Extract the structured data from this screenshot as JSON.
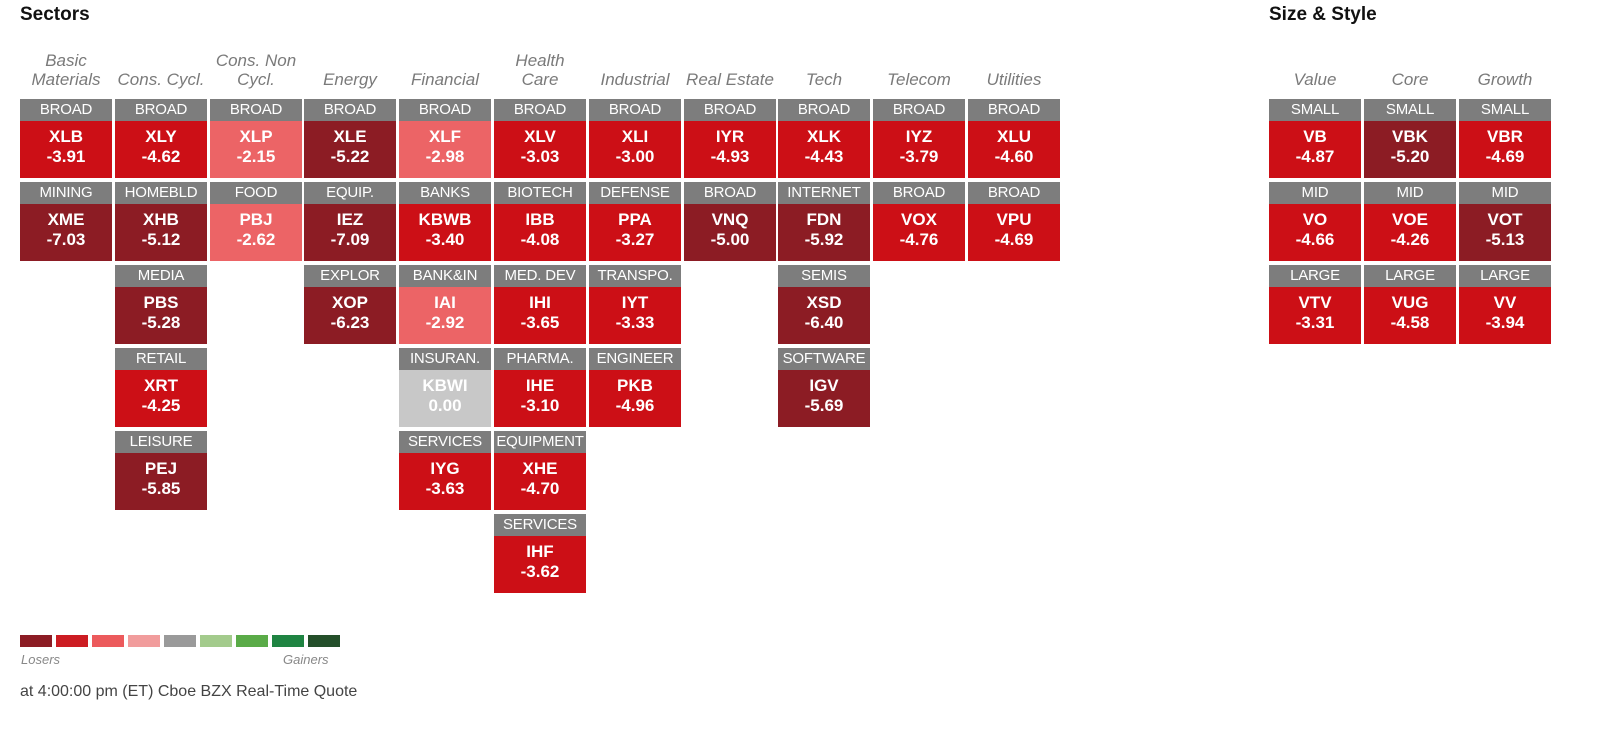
{
  "sectors_title": "Sectors",
  "size_style_title": "Size & Style",
  "colors": {
    "deep_loss": "#8c1c24",
    "loss": "#cc0f16",
    "mild_loss": "#ec6466",
    "neutral": "#c8c8c8",
    "sublabel_bg": "#7d7d7d"
  },
  "sector_columns": [
    {
      "header": "Basic\nMaterials",
      "tiles": [
        {
          "sub": "BROAD",
          "ticker": "XLB",
          "change": "-3.91",
          "level": "loss"
        },
        {
          "sub": "MINING",
          "ticker": "XME",
          "change": "-7.03",
          "level": "deep_loss"
        }
      ]
    },
    {
      "header": "Cons. Cycl.",
      "tiles": [
        {
          "sub": "BROAD",
          "ticker": "XLY",
          "change": "-4.62",
          "level": "loss"
        },
        {
          "sub": "HOMEBLD",
          "ticker": "XHB",
          "change": "-5.12",
          "level": "deep_loss"
        },
        {
          "sub": "MEDIA",
          "ticker": "PBS",
          "change": "-5.28",
          "level": "deep_loss"
        },
        {
          "sub": "RETAIL",
          "ticker": "XRT",
          "change": "-4.25",
          "level": "loss"
        },
        {
          "sub": "LEISURE",
          "ticker": "PEJ",
          "change": "-5.85",
          "level": "deep_loss"
        }
      ]
    },
    {
      "header": "Cons. Non\nCycl.",
      "tiles": [
        {
          "sub": "BROAD",
          "ticker": "XLP",
          "change": "-2.15",
          "level": "mild_loss"
        },
        {
          "sub": "FOOD",
          "ticker": "PBJ",
          "change": "-2.62",
          "level": "mild_loss"
        }
      ]
    },
    {
      "header": "Energy",
      "tiles": [
        {
          "sub": "BROAD",
          "ticker": "XLE",
          "change": "-5.22",
          "level": "deep_loss"
        },
        {
          "sub": "EQUIP.",
          "ticker": "IEZ",
          "change": "-7.09",
          "level": "deep_loss"
        },
        {
          "sub": "EXPLOR",
          "ticker": "XOP",
          "change": "-6.23",
          "level": "deep_loss"
        }
      ]
    },
    {
      "header": "Financial",
      "tiles": [
        {
          "sub": "BROAD",
          "ticker": "XLF",
          "change": "-2.98",
          "level": "mild_loss"
        },
        {
          "sub": "BANKS",
          "ticker": "KBWB",
          "change": "-3.40",
          "level": "loss"
        },
        {
          "sub": "BANK&IN",
          "ticker": "IAI",
          "change": "-2.92",
          "level": "mild_loss"
        },
        {
          "sub": "INSURAN.",
          "ticker": "KBWI",
          "change": "0.00",
          "level": "neutral"
        },
        {
          "sub": "SERVICES",
          "ticker": "IYG",
          "change": "-3.63",
          "level": "loss"
        }
      ]
    },
    {
      "header": "Health\nCare",
      "tiles": [
        {
          "sub": "BROAD",
          "ticker": "XLV",
          "change": "-3.03",
          "level": "loss"
        },
        {
          "sub": "BIOTECH",
          "ticker": "IBB",
          "change": "-4.08",
          "level": "loss"
        },
        {
          "sub": "MED. DEV",
          "ticker": "IHI",
          "change": "-3.65",
          "level": "loss"
        },
        {
          "sub": "PHARMA.",
          "ticker": "IHE",
          "change": "-3.10",
          "level": "loss"
        },
        {
          "sub": "EQUIPMENT",
          "ticker": "XHE",
          "change": "-4.70",
          "level": "loss"
        },
        {
          "sub": "SERVICES",
          "ticker": "IHF",
          "change": "-3.62",
          "level": "loss"
        }
      ]
    },
    {
      "header": "Industrial",
      "tiles": [
        {
          "sub": "BROAD",
          "ticker": "XLI",
          "change": "-3.00",
          "level": "loss"
        },
        {
          "sub": "DEFENSE",
          "ticker": "PPA",
          "change": "-3.27",
          "level": "loss"
        },
        {
          "sub": "TRANSPO.",
          "ticker": "IYT",
          "change": "-3.33",
          "level": "loss"
        },
        {
          "sub": "ENGINEER",
          "ticker": "PKB",
          "change": "-4.96",
          "level": "loss"
        }
      ]
    },
    {
      "header": "Real Estate",
      "tiles": [
        {
          "sub": "BROAD",
          "ticker": "IYR",
          "change": "-4.93",
          "level": "loss"
        },
        {
          "sub": "BROAD",
          "ticker": "VNQ",
          "change": "-5.00",
          "level": "deep_loss"
        }
      ]
    },
    {
      "header": "Tech",
      "tiles": [
        {
          "sub": "BROAD",
          "ticker": "XLK",
          "change": "-4.43",
          "level": "loss"
        },
        {
          "sub": "INTERNET",
          "ticker": "FDN",
          "change": "-5.92",
          "level": "deep_loss"
        },
        {
          "sub": "SEMIS",
          "ticker": "XSD",
          "change": "-6.40",
          "level": "deep_loss"
        },
        {
          "sub": "SOFTWARE",
          "ticker": "IGV",
          "change": "-5.69",
          "level": "deep_loss"
        }
      ]
    },
    {
      "header": "Telecom",
      "tiles": [
        {
          "sub": "BROAD",
          "ticker": "IYZ",
          "change": "-3.79",
          "level": "loss"
        },
        {
          "sub": "BROAD",
          "ticker": "VOX",
          "change": "-4.76",
          "level": "loss"
        }
      ]
    },
    {
      "header": "Utilities",
      "tiles": [
        {
          "sub": "BROAD",
          "ticker": "XLU",
          "change": "-4.60",
          "level": "loss"
        },
        {
          "sub": "BROAD",
          "ticker": "VPU",
          "change": "-4.69",
          "level": "loss"
        }
      ]
    }
  ],
  "style_columns": [
    {
      "header": "Value",
      "tiles": [
        {
          "sub": "SMALL",
          "ticker": "VB",
          "change": "-4.87",
          "level": "loss"
        },
        {
          "sub": "MID",
          "ticker": "VO",
          "change": "-4.66",
          "level": "loss"
        },
        {
          "sub": "LARGE",
          "ticker": "VTV",
          "change": "-3.31",
          "level": "loss"
        }
      ]
    },
    {
      "header": "Core",
      "tiles": [
        {
          "sub": "SMALL",
          "ticker": "VBK",
          "change": "-5.20",
          "level": "deep_loss"
        },
        {
          "sub": "MID",
          "ticker": "VOE",
          "change": "-4.26",
          "level": "loss"
        },
        {
          "sub": "LARGE",
          "ticker": "VUG",
          "change": "-4.58",
          "level": "loss"
        }
      ]
    },
    {
      "header": "Growth",
      "tiles": [
        {
          "sub": "SMALL",
          "ticker": "VBR",
          "change": "-4.69",
          "level": "loss"
        },
        {
          "sub": "MID",
          "ticker": "VOT",
          "change": "-5.13",
          "level": "deep_loss"
        },
        {
          "sub": "LARGE",
          "ticker": "VV",
          "change": "-3.94",
          "level": "loss"
        }
      ]
    }
  ],
  "legend": {
    "swatches": [
      "#8c1c24",
      "#cc1c22",
      "#ec5a5c",
      "#f19c9c",
      "#9a9a9a",
      "#a3cb8c",
      "#5aab48",
      "#1f8442",
      "#244f2a"
    ],
    "losers_label": "Losers",
    "gainers_label": "Gainers"
  },
  "footer": "at 4:00:00 pm (ET) Cboe BZX Real-Time Quote"
}
